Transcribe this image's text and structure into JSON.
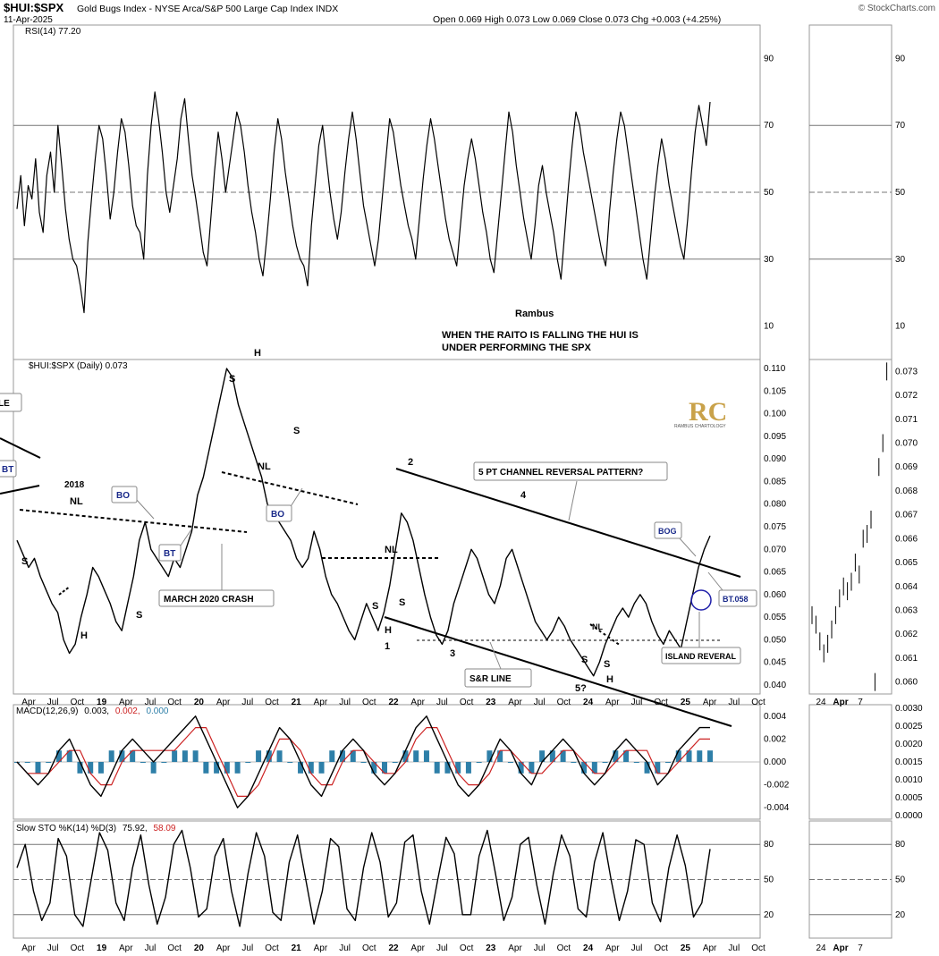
{
  "header": {
    "symbol": "$HUI:$SPX",
    "description": "Gold Bugs Index - NYSE Arca/S&P 500 Large Cap Index INDX",
    "date": "11-Apr-2025",
    "ohlc": "Open 0.069  High 0.073  Low 0.069  Close 0.073  Chg +0.003 (+4.25%)",
    "brand": "© StockCharts.com"
  },
  "colors": {
    "macd_line": "#000000",
    "signal_line": "#cc2222",
    "histogram": "#2e7fa8",
    "rsi_fill": "#8a6a5a",
    "rsi_fill_top": "#5a7a5a",
    "sto_d": "#cc2222"
  },
  "panels": {
    "rsi_label": "RSI(14) 77.20",
    "price_label": "$HUI:$SPX (Daily) 0.073",
    "macd_label_prefix": "MACD(12,26,9)",
    "macd_v1": "0.003,",
    "macd_v2": "0.002,",
    "macd_v3": "0.000",
    "sto_label_prefix": "Slow STO %K(14) %D(3)",
    "sto_v1": "75.92,",
    "sto_v2": "58.09"
  },
  "annotations": {
    "rambus": "Rambus",
    "note1": "WHEN THE RAITO IS FALLING THE HUI IS",
    "note2": "UNDER PERFORMING THE SPX",
    "box_le": "LE",
    "box_bt1": "BT",
    "year2018": "2018",
    "nl1": "NL",
    "box_bo1": "BO",
    "box_bt2": "BT",
    "s1": "S",
    "h1": "H",
    "s2": "S",
    "march": "MARCH 2020 CRASH",
    "s_top1": "S",
    "h_top": "H",
    "nl_top": "NL",
    "s_top2": "S",
    "box_bo2": "BO",
    "pt2": "2",
    "channel": "5 PT CHANNEL REVERSAL PATTERN?",
    "pt4": "4",
    "nl3": "NL",
    "s3": "S",
    "s4": "S",
    "h3": "H",
    "pt1": "1",
    "pt3": "3",
    "sr": "S&R LINE",
    "nl4": "NL",
    "s5": "S",
    "s6": "S",
    "h5": "H",
    "pt5": "5?",
    "bog": "BOG",
    "bt058": "BT.058",
    "island": "ISLAND REVERAL",
    "logo_letters": "RC",
    "logo_text": "RAMBUS CHARTOLOGY"
  },
  "chart_data": [
    {
      "type": "line",
      "title": "RSI(14) 77.20",
      "ylim": [
        0,
        100
      ],
      "yticks": [
        10,
        30,
        50,
        70,
        90
      ],
      "reference_lines": [
        30,
        50,
        70
      ],
      "series": [
        {
          "values": [
            45,
            55,
            40,
            52,
            48,
            60,
            44,
            38,
            55,
            62,
            50,
            70,
            58,
            45,
            36,
            30,
            28,
            22,
            14,
            35,
            48,
            60,
            70,
            66,
            55,
            42,
            50,
            62,
            72,
            68,
            58,
            46,
            40,
            38,
            30,
            55,
            70,
            80,
            72,
            62,
            50,
            44,
            52,
            60,
            72,
            78,
            66,
            55,
            48,
            40,
            32,
            28,
            42,
            56,
            68,
            60,
            50,
            58,
            66,
            74,
            70,
            62,
            52,
            44,
            38,
            30,
            25,
            36,
            48,
            62,
            72,
            66,
            56,
            48,
            40,
            34,
            30,
            28,
            22,
            40,
            52,
            64,
            70,
            60,
            50,
            42,
            36,
            44,
            56,
            66,
            74,
            66,
            56,
            46,
            40,
            34,
            28,
            36,
            48,
            60,
            72,
            68,
            60,
            52,
            46,
            40,
            36,
            30,
            42,
            54,
            64,
            72,
            66,
            58,
            50,
            42,
            36,
            32,
            28,
            40,
            52,
            60,
            66,
            60,
            52,
            44,
            38,
            30,
            26,
            38,
            50,
            62,
            74,
            68,
            58,
            50,
            42,
            36,
            30,
            40,
            52,
            58,
            50,
            44,
            38,
            30,
            24,
            38,
            52,
            64,
            74,
            70,
            62,
            56,
            50,
            44,
            38,
            32,
            28,
            44,
            56,
            66,
            74,
            70,
            62,
            54,
            46,
            38,
            30,
            24,
            36,
            48,
            58,
            66,
            60,
            52,
            46,
            40,
            34,
            30,
            42,
            56,
            68,
            76,
            70,
            64,
            77
          ]
        }
      ]
    },
    {
      "type": "line",
      "title": "$HUI:$SPX (Daily) 0.073",
      "ylim": [
        0.038,
        0.112
      ],
      "yticks": [
        0.04,
        0.045,
        0.05,
        0.055,
        0.06,
        0.065,
        0.07,
        0.075,
        0.08,
        0.085,
        0.09,
        0.095,
        0.1,
        0.105,
        0.11
      ],
      "x_labels": [
        "Apr",
        "Jul",
        "Oct",
        "19",
        "Apr",
        "Jul",
        "Oct",
        "20",
        "Apr",
        "Jul",
        "Oct",
        "21",
        "Apr",
        "Jul",
        "Oct",
        "22",
        "Apr",
        "Jul",
        "Oct",
        "23",
        "Apr",
        "Jul",
        "Oct",
        "24",
        "Apr",
        "Jul",
        "Oct",
        "25",
        "Apr",
        "Jul",
        "Oct"
      ],
      "series": [
        {
          "values": [
            0.072,
            0.069,
            0.066,
            0.068,
            0.064,
            0.061,
            0.058,
            0.056,
            0.05,
            0.047,
            0.049,
            0.055,
            0.06,
            0.066,
            0.064,
            0.061,
            0.058,
            0.054,
            0.052,
            0.058,
            0.064,
            0.072,
            0.076,
            0.07,
            0.068,
            0.066,
            0.064,
            0.068,
            0.066,
            0.07,
            0.074,
            0.082,
            0.086,
            0.092,
            0.098,
            0.104,
            0.11,
            0.108,
            0.102,
            0.098,
            0.094,
            0.09,
            0.086,
            0.08,
            0.078,
            0.076,
            0.074,
            0.072,
            0.068,
            0.066,
            0.068,
            0.074,
            0.07,
            0.064,
            0.06,
            0.058,
            0.055,
            0.052,
            0.05,
            0.054,
            0.058,
            0.055,
            0.052,
            0.056,
            0.062,
            0.07,
            0.078,
            0.076,
            0.072,
            0.066,
            0.06,
            0.055,
            0.051,
            0.049,
            0.052,
            0.058,
            0.062,
            0.066,
            0.07,
            0.068,
            0.064,
            0.06,
            0.058,
            0.062,
            0.068,
            0.07,
            0.066,
            0.062,
            0.058,
            0.054,
            0.052,
            0.05,
            0.052,
            0.055,
            0.053,
            0.05,
            0.048,
            0.046,
            0.044,
            0.042,
            0.045,
            0.049,
            0.052,
            0.055,
            0.057,
            0.055,
            0.058,
            0.06,
            0.058,
            0.054,
            0.051,
            0.049,
            0.052,
            0.05,
            0.048,
            0.054,
            0.06,
            0.066,
            0.07,
            0.073
          ]
        }
      ]
    },
    {
      "type": "line",
      "title": "MACD(12,26,9) 0.003, 0.002, 0.000",
      "ylim": [
        -0.005,
        0.005
      ],
      "yticks": [
        -0.004,
        -0.002,
        0.0,
        0.002,
        0.004
      ],
      "series": [
        {
          "name": "MACD",
          "values": [
            0.0,
            -0.001,
            -0.002,
            -0.001,
            0.001,
            0.002,
            0.0,
            -0.002,
            -0.003,
            -0.001,
            0.001,
            0.002,
            0.001,
            0.0,
            0.001,
            0.002,
            0.003,
            0.004,
            0.002,
            0.0,
            -0.002,
            -0.004,
            -0.003,
            -0.001,
            0.001,
            0.003,
            0.002,
            0.0,
            -0.002,
            -0.003,
            -0.001,
            0.001,
            0.002,
            0.001,
            -0.001,
            -0.002,
            -0.001,
            0.001,
            0.003,
            0.004,
            0.002,
            0.0,
            -0.002,
            -0.003,
            -0.002,
            0.0,
            0.002,
            0.001,
            -0.001,
            -0.002,
            0.0,
            0.001,
            0.002,
            0.001,
            -0.001,
            -0.002,
            -0.001,
            0.001,
            0.002,
            0.001,
            0.0,
            -0.002,
            -0.001,
            0.001,
            0.002,
            0.003,
            0.003
          ]
        },
        {
          "name": "Signal",
          "values": [
            0.0,
            -0.001,
            -0.001,
            -0.001,
            0.0,
            0.001,
            0.001,
            -0.001,
            -0.002,
            -0.002,
            0.0,
            0.001,
            0.001,
            0.001,
            0.001,
            0.001,
            0.002,
            0.003,
            0.003,
            0.001,
            -0.001,
            -0.003,
            -0.003,
            -0.002,
            0.0,
            0.002,
            0.002,
            0.001,
            -0.001,
            -0.002,
            -0.002,
            0.0,
            0.001,
            0.001,
            0.0,
            -0.001,
            -0.001,
            0.0,
            0.002,
            0.003,
            0.003,
            0.001,
            -0.001,
            -0.002,
            -0.002,
            -0.001,
            0.001,
            0.001,
            0.0,
            -0.001,
            -0.001,
            0.0,
            0.001,
            0.001,
            0.0,
            -0.001,
            -0.001,
            0.0,
            0.001,
            0.001,
            0.001,
            -0.001,
            -0.001,
            0.0,
            0.001,
            0.002,
            0.002
          ]
        }
      ]
    },
    {
      "type": "line",
      "title": "Slow STO %K(14) %D(3) 75.92, 58.09",
      "ylim": [
        0,
        100
      ],
      "yticks": [
        20,
        50,
        80
      ],
      "reference_lines": [
        20,
        50,
        80
      ],
      "series": [
        {
          "values": [
            60,
            80,
            40,
            15,
            30,
            85,
            70,
            20,
            10,
            50,
            90,
            75,
            30,
            15,
            60,
            88,
            45,
            12,
            35,
            80,
            92,
            60,
            18,
            25,
            70,
            85,
            40,
            10,
            55,
            90,
            70,
            22,
            15,
            65,
            88,
            50,
            12,
            40,
            85,
            78,
            25,
            15,
            60,
            90,
            65,
            18,
            30,
            82,
            88,
            40,
            12,
            50,
            86,
            72,
            20,
            20,
            70,
            92,
            55,
            15,
            35,
            80,
            86,
            45,
            12,
            55,
            88,
            70,
            25,
            18,
            65,
            90,
            50,
            15,
            40,
            84,
            80,
            30,
            14,
            60,
            88,
            62,
            18,
            30,
            76
          ]
        }
      ]
    },
    {
      "type": "line",
      "title": "inset",
      "x_labels": [
        "24",
        "Apr",
        "7"
      ],
      "rsi_yticks": [
        10,
        30,
        50,
        70,
        90
      ],
      "price_yticks": [
        0.06,
        0.061,
        0.062,
        0.063,
        0.064,
        0.065,
        0.066,
        0.067,
        0.068,
        0.069,
        0.07,
        0.071,
        0.072,
        0.073
      ],
      "macd_yticks": [
        0.0,
        0.0005,
        0.001,
        0.0015,
        0.002,
        0.0025,
        0.003
      ],
      "sto_yticks": [
        20,
        50,
        80
      ]
    }
  ]
}
